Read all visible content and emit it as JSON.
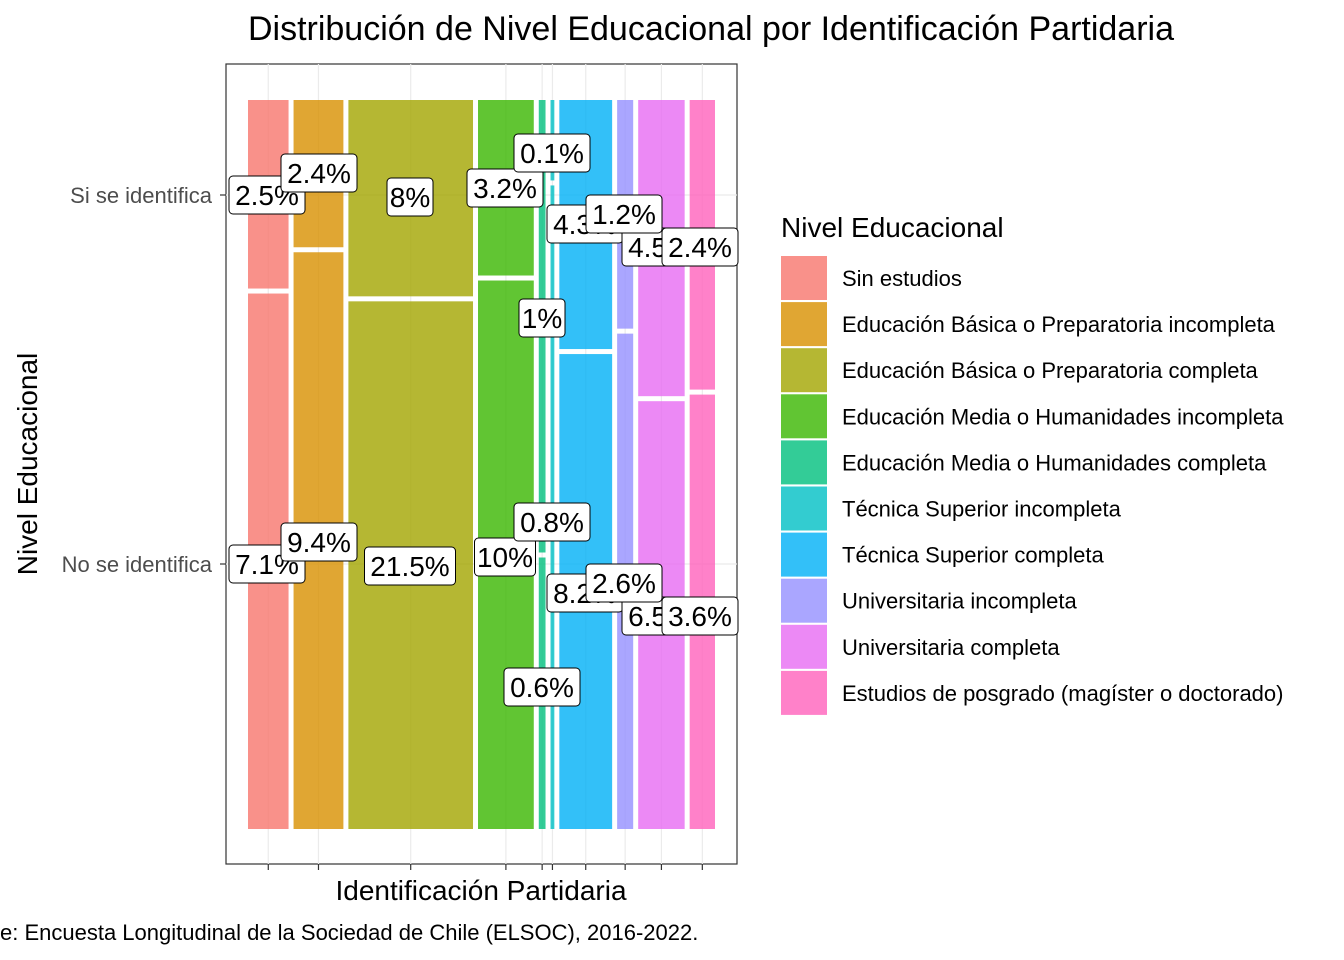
{
  "chart_data": {
    "type": "mosaic",
    "title": "Distribución de Nivel Educacional por Identificación Partidaria",
    "xlabel": "Identificación Partidaria",
    "ylabel": "Nivel Educacional",
    "caption": "e: Encuesta Longitudinal de la Sociedad de Chile (ELSOC), 2016-2022.",
    "rows": [
      "Si se identifica",
      "No se identifica"
    ],
    "legend": {
      "title": "Nivel Educacional",
      "position": "right"
    },
    "categories": [
      {
        "name": "Sin estudios",
        "color": "#F8766D",
        "values": {
          "Si se identifica": 2.5,
          "No se identifica": 7.1
        },
        "labels": {
          "Si se identifica": "2.5%",
          "No se identifica": "7.1%"
        }
      },
      {
        "name": "Educación Básica o Preparatoria incompleta",
        "color": "#D89000",
        "values": {
          "Si se identifica": 2.4,
          "No se identifica": 9.4
        },
        "labels": {
          "Si se identifica": "2.4%",
          "No se identifica": "9.4%"
        }
      },
      {
        "name": "Educación Básica o Preparatoria completa",
        "color": "#A3A500",
        "values": {
          "Si se identifica": 8.0,
          "No se identifica": 21.5
        },
        "labels": {
          "Si se identifica": "8%",
          "No se identifica": "21.5%"
        }
      },
      {
        "name": "Educación Media o Humanidades incompleta",
        "color": "#39B600",
        "values": {
          "Si se identifica": 3.2,
          "No se identifica": 10.0
        },
        "labels": {
          "Si se identifica": "3.2%",
          "No se identifica": "10%"
        }
      },
      {
        "name": "Educación Media o Humanidades completa",
        "color": "#00BF7D",
        "values": {
          "Si se identifica": 1.0,
          "No se identifica": 0.6
        },
        "labels": {
          "Si se identifica": "1%",
          "No se identifica": "0.6%"
        }
      },
      {
        "name": "Técnica Superior incompleta",
        "color": "#00BFC4",
        "values": {
          "Si se identifica": 0.1,
          "No se identifica": 0.8
        },
        "labels": {
          "Si se identifica": "0.1%",
          "No se identifica": "0.8%"
        }
      },
      {
        "name": "Técnica Superior completa",
        "color": "#00B0F6",
        "values": {
          "Si se identifica": 4.3,
          "No se identifica": 8.2
        },
        "labels": {
          "Si se identifica": "4.3%",
          "No se identifica": "8.2%"
        }
      },
      {
        "name": "Universitaria incompleta",
        "color": "#9590FF",
        "values": {
          "Si se identifica": 1.2,
          "No se identifica": 2.6
        },
        "labels": {
          "Si se identifica": "1.2%",
          "No se identifica": "2.6%"
        }
      },
      {
        "name": "Universitaria completa",
        "color": "#E76BF3",
        "values": {
          "Si se identifica": 4.5,
          "No se identifica": 6.5
        },
        "labels": {
          "Si se identifica": "4.5%",
          "No se identifica": "6.5%"
        }
      },
      {
        "name": "Estudios de posgrado (magíster o doctorado)",
        "color": "#FF62BC",
        "values": {
          "Si se identifica": 2.4,
          "No se identifica": 3.6
        },
        "labels": {
          "Si se identifica": "2.4%",
          "No se identifica": "3.6%"
        }
      }
    ]
  }
}
